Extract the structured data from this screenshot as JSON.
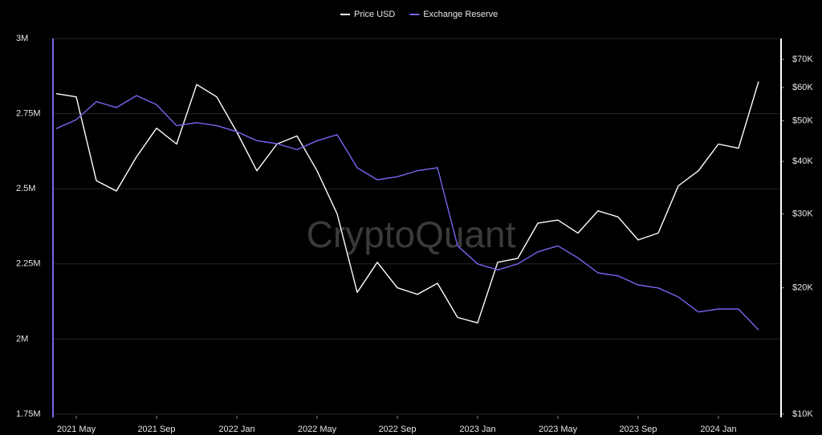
{
  "chart_data": {
    "type": "line",
    "watermark": "CryptoQuant",
    "x": [
      "2021-04",
      "2021-05",
      "2021-06",
      "2021-07",
      "2021-08",
      "2021-09",
      "2021-10",
      "2021-11",
      "2021-12",
      "2022-01",
      "2022-02",
      "2022-03",
      "2022-04",
      "2022-05",
      "2022-06",
      "2022-07",
      "2022-08",
      "2022-09",
      "2022-10",
      "2022-11",
      "2022-12",
      "2023-01",
      "2023-02",
      "2023-03",
      "2023-04",
      "2023-05",
      "2023-06",
      "2023-07",
      "2023-08",
      "2023-09",
      "2023-10",
      "2023-11",
      "2023-12",
      "2024-01",
      "2024-02",
      "2024-03"
    ],
    "xticks": [
      {
        "value": "2021-05",
        "label": "2021 May"
      },
      {
        "value": "2021-09",
        "label": "2021 Sep"
      },
      {
        "value": "2022-01",
        "label": "2022 Jan"
      },
      {
        "value": "2022-05",
        "label": "2022 May"
      },
      {
        "value": "2022-09",
        "label": "2022 Sep"
      },
      {
        "value": "2023-01",
        "label": "2023 Jan"
      },
      {
        "value": "2023-05",
        "label": "2023 May"
      },
      {
        "value": "2023-09",
        "label": "2023 Sep"
      },
      {
        "value": "2024-01",
        "label": "2024 Jan"
      }
    ],
    "series": [
      {
        "name": "Price USD",
        "color": "#ffffff",
        "axis": "y2",
        "values": [
          58000,
          57000,
          36000,
          34000,
          41000,
          48000,
          44000,
          61000,
          57000,
          47000,
          38000,
          44000,
          46000,
          38000,
          30000,
          19500,
          23000,
          20000,
          19300,
          20500,
          17000,
          16500,
          23000,
          23500,
          28500,
          29000,
          27000,
          30500,
          29500,
          26000,
          27000,
          35000,
          38000,
          44000,
          43000,
          62000
        ]
      },
      {
        "name": "Exchange Reserve",
        "color": "#7367f0",
        "axis": "y",
        "values": [
          2700000,
          2730000,
          2790000,
          2770000,
          2810000,
          2780000,
          2710000,
          2720000,
          2710000,
          2690000,
          2660000,
          2650000,
          2630000,
          2660000,
          2680000,
          2570000,
          2530000,
          2540000,
          2560000,
          2570000,
          2310000,
          2250000,
          2230000,
          2250000,
          2290000,
          2310000,
          2270000,
          2220000,
          2210000,
          2180000,
          2170000,
          2140000,
          2090000,
          2100000,
          2100000,
          2030000
        ]
      }
    ],
    "ylim": [
      1750000,
      3000000
    ],
    "yticks": [
      {
        "value": 1750000,
        "label": "1.75M"
      },
      {
        "value": 2000000,
        "label": "2M"
      },
      {
        "value": 2250000,
        "label": "2.25M"
      },
      {
        "value": 2500000,
        "label": "2.5M"
      },
      {
        "value": 2750000,
        "label": "2.75M"
      },
      {
        "value": 3000000,
        "label": "3M"
      }
    ],
    "y2lim": [
      10000,
      78500
    ],
    "y2scale": "log",
    "y2ticks": [
      {
        "value": 10000,
        "label": "$10K"
      },
      {
        "value": 20000,
        "label": "$20K"
      },
      {
        "value": 30000,
        "label": "$30K"
      },
      {
        "value": 40000,
        "label": "$40K"
      },
      {
        "value": 50000,
        "label": "$50K"
      },
      {
        "value": 60000,
        "label": "$60K"
      },
      {
        "value": 70000,
        "label": "$70K"
      }
    ],
    "grid": true,
    "legend": "top"
  }
}
